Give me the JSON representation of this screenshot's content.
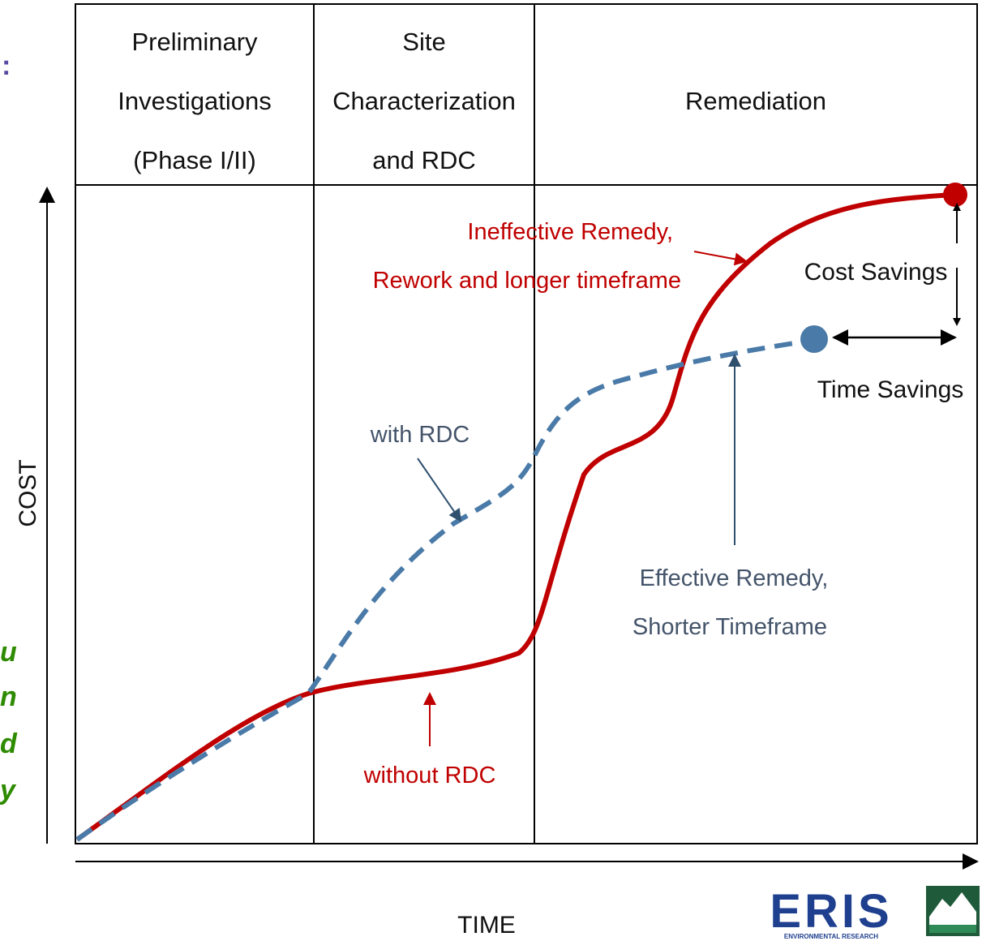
{
  "phases": [
    {
      "lines": [
        "Preliminary",
        "Investigations",
        "(Phase I/II)"
      ]
    },
    {
      "lines": [
        "Site",
        "Characterization",
        "and RDC"
      ]
    },
    {
      "lines": [
        "Remediation"
      ]
    }
  ],
  "axes": {
    "y": "COST",
    "x": "TIME"
  },
  "annotations": {
    "ineffective": [
      "Ineffective Remedy,",
      "Rework and longer timeframe"
    ],
    "with_rdc": "with RDC",
    "without_rdc": "without RDC",
    "effective": [
      "Effective Remedy,",
      "Shorter Timeframe"
    ],
    "cost_savings": "Cost Savings",
    "time_savings": "Time Savings"
  },
  "logo": {
    "name": "ERIS",
    "subtitle": "ENVIRONMENTAL RESEARCH"
  },
  "cutoff_text": [
    ":",
    "u",
    "n",
    "d",
    "y"
  ]
}
